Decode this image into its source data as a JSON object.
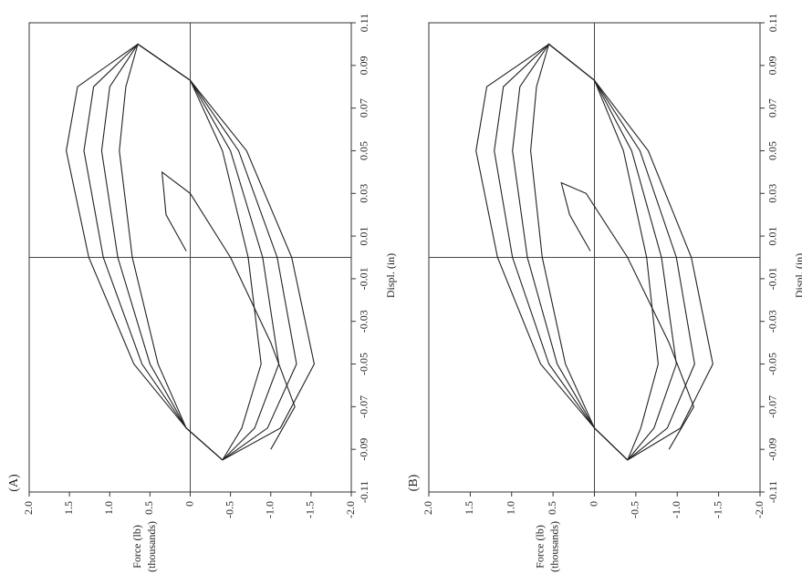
{
  "chart_data": [
    {
      "type": "line",
      "panel_label": "(A)",
      "xlabel": "Displ. (in)",
      "ylabel": [
        "Force (lb)",
        "(thousands)"
      ],
      "xlim": [
        -0.11,
        0.11
      ],
      "xticks": [
        -0.11,
        -0.09,
        -0.07,
        -0.05,
        -0.03,
        -0.01,
        0.01,
        0.03,
        0.05,
        0.07,
        0.09,
        0.11
      ],
      "ylim": [
        -2,
        2
      ],
      "yticks": [
        {
          "value": 2,
          "label": "2.0"
        },
        1.5,
        {
          "value": 1,
          "label": "1.0"
        },
        0.5,
        0,
        -0.5,
        {
          "value": -1,
          "label": "-1.0"
        },
        -1.5,
        {
          "value": -2,
          "label": "-2.0"
        }
      ],
      "zero_lines": true,
      "color": "#222",
      "series": [
        {
          "x": [
            0.003,
            0.02,
            0.04,
            0.03,
            0,
            -0.04,
            -0.07,
            -0.09
          ],
          "values": [
            0.05,
            0.3,
            0.35,
            0,
            -0.5,
            -1.0,
            -1.3,
            -1.0
          ]
        },
        {
          "x": [
            -0.095,
            -0.08,
            -0.05,
            0,
            0.05,
            0.08,
            0.1,
            0.083,
            0.05,
            0,
            -0.05,
            -0.08,
            -0.095
          ],
          "values": [
            -0.4,
            0.05,
            0.4,
            0.72,
            0.88,
            0.8,
            0.65,
            0,
            -0.4,
            -0.72,
            -0.88,
            -0.64,
            -0.4
          ]
        },
        {
          "x": [
            -0.095,
            -0.08,
            -0.05,
            0,
            0.05,
            0.08,
            0.1,
            0.083,
            0.05,
            0,
            -0.05,
            -0.08,
            -0.095
          ],
          "values": [
            -0.4,
            0.05,
            0.5,
            0.9,
            1.1,
            1.0,
            0.65,
            0,
            -0.5,
            -0.9,
            -1.1,
            -0.8,
            -0.4
          ]
        },
        {
          "x": [
            -0.095,
            -0.08,
            -0.05,
            0,
            0.05,
            0.08,
            0.1,
            0.083,
            0.05,
            0,
            -0.05,
            -0.08,
            -0.095
          ],
          "values": [
            -0.4,
            0.05,
            0.6,
            1.08,
            1.32,
            1.2,
            0.65,
            0,
            -0.6,
            -1.08,
            -1.32,
            -0.96,
            -0.4
          ]
        },
        {
          "x": [
            -0.095,
            -0.08,
            -0.05,
            0,
            0.05,
            0.08,
            0.1,
            0.083,
            0.05,
            0,
            -0.05,
            -0.08,
            -0.095
          ],
          "values": [
            -0.4,
            0.05,
            0.7,
            1.26,
            1.54,
            1.4,
            0.65,
            0,
            -0.7,
            -1.26,
            -1.54,
            -1.12,
            -0.4
          ]
        }
      ]
    },
    {
      "type": "line",
      "panel_label": "(B)",
      "xlabel": "Displ. (in)",
      "ylabel": [
        "Force (lb)",
        "(thousands)"
      ],
      "xlim": [
        -0.11,
        0.11
      ],
      "xticks": [
        -0.11,
        -0.09,
        -0.07,
        -0.05,
        -0.03,
        -0.01,
        0.01,
        0.03,
        0.05,
        0.07,
        0.09,
        0.11
      ],
      "ylim": [
        -2,
        2
      ],
      "yticks": [
        {
          "value": 2,
          "label": "2.0"
        },
        1.5,
        {
          "value": 1,
          "label": "1.0"
        },
        0.5,
        0,
        -0.5,
        {
          "value": -1,
          "label": "-1.0"
        },
        -1.5,
        {
          "value": -2,
          "label": "-2.0"
        }
      ],
      "zero_lines": true,
      "color": "#222",
      "series": [
        {
          "x": [
            0.003,
            0.02,
            0.035,
            0.03,
            0,
            -0.04,
            -0.07,
            -0.09
          ],
          "values": [
            0.05,
            0.3,
            0.4,
            0.1,
            -0.4,
            -0.9,
            -1.2,
            -0.9
          ]
        },
        {
          "x": [
            -0.095,
            -0.08,
            -0.05,
            0,
            0.05,
            0.08,
            0.1,
            0.083,
            0.05,
            0,
            -0.05,
            -0.08,
            -0.095
          ],
          "values": [
            -0.4,
            0.0,
            0.35,
            0.63,
            0.77,
            0.7,
            0.55,
            0,
            -0.35,
            -0.63,
            -0.77,
            -0.56,
            -0.4
          ]
        },
        {
          "x": [
            -0.095,
            -0.08,
            -0.05,
            0,
            0.05,
            0.08,
            0.1,
            0.083,
            0.05,
            0,
            -0.05,
            -0.08,
            -0.095
          ],
          "values": [
            -0.4,
            0.0,
            0.45,
            0.81,
            0.99,
            0.9,
            0.55,
            0,
            -0.45,
            -0.81,
            -0.99,
            -0.72,
            -0.4
          ]
        },
        {
          "x": [
            -0.095,
            -0.08,
            -0.05,
            0,
            0.05,
            0.08,
            0.1,
            0.083,
            0.05,
            0,
            -0.05,
            -0.08,
            -0.095
          ],
          "values": [
            -0.4,
            0.0,
            0.55,
            0.99,
            1.21,
            1.1,
            0.55,
            0,
            -0.55,
            -0.99,
            -1.21,
            -0.88,
            -0.4
          ]
        },
        {
          "x": [
            -0.095,
            -0.08,
            -0.05,
            0,
            0.05,
            0.08,
            0.1,
            0.083,
            0.05,
            0,
            -0.05,
            -0.08,
            -0.095
          ],
          "values": [
            -0.4,
            0.0,
            0.65,
            1.17,
            1.43,
            1.3,
            0.55,
            0,
            -0.65,
            -1.17,
            -1.43,
            -1.04,
            -0.4
          ]
        }
      ]
    }
  ]
}
